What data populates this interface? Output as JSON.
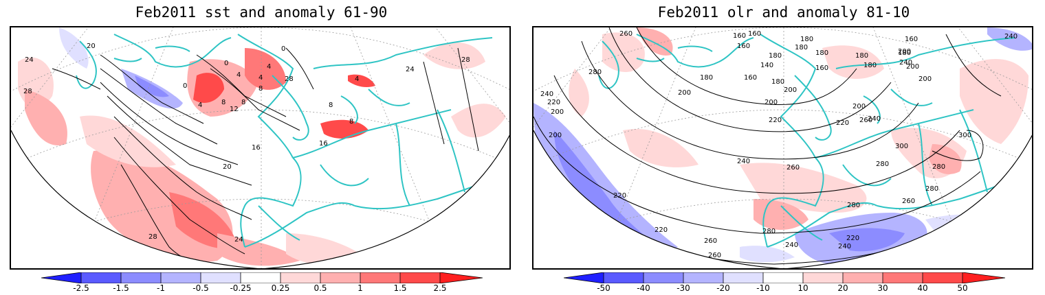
{
  "panels": [
    {
      "title": "Feb2011 sst and anomaly 61-90",
      "contour_labels": [
        "24",
        "20",
        "0",
        "0",
        "4",
        "4",
        "8",
        "4",
        "8",
        "0",
        "4",
        "8",
        "12",
        "16",
        "16",
        "20",
        "24",
        "28",
        "28",
        "28",
        "24",
        "28",
        "8",
        "4",
        "8"
      ],
      "colorbar": {
        "labels": [
          "-2.5",
          "-1.5",
          "-1",
          "-0.5",
          "-0.25",
          "0.25",
          "0.5",
          "1",
          "1.5",
          "2.5"
        ],
        "colors": [
          "#2020ff",
          "#5a5aff",
          "#8c8cff",
          "#b4b4ff",
          "#e0e0ff",
          "#ffffff",
          "#ffd8d8",
          "#ffb0b0",
          "#ff7878",
          "#ff4a4a",
          "#ff1f1f"
        ]
      }
    },
    {
      "title": "Feb2011 olr and anomaly 81-10",
      "contour_labels": [
        "260",
        "160",
        "160",
        "180",
        "160",
        "180",
        "180",
        "140",
        "160",
        "180",
        "180",
        "180",
        "200",
        "240",
        "160",
        "180",
        "160",
        "180",
        "200",
        "200",
        "280",
        "200",
        "180",
        "200",
        "200",
        "200",
        "220",
        "240",
        "240",
        "220",
        "200",
        "240",
        "260",
        "300",
        "300",
        "280",
        "280",
        "260",
        "260",
        "280",
        "280",
        "220",
        "240",
        "200",
        "220",
        "260",
        "220",
        "240",
        "240",
        "280",
        "260",
        "220"
      ],
      "colorbar": {
        "labels": [
          "-50",
          "-40",
          "-30",
          "-20",
          "-10",
          "10",
          "20",
          "30",
          "40",
          "50"
        ],
        "colors": [
          "#2020ff",
          "#5a5aff",
          "#8c8cff",
          "#b4b4ff",
          "#e0e0ff",
          "#ffffff",
          "#ffd8d8",
          "#ffb0b0",
          "#ff7878",
          "#ff4a4a",
          "#ff1f1f"
        ]
      }
    }
  ],
  "colors": {
    "coast": "#2ec4c4",
    "contour": "#000000",
    "grid": "#9a9a9a"
  }
}
